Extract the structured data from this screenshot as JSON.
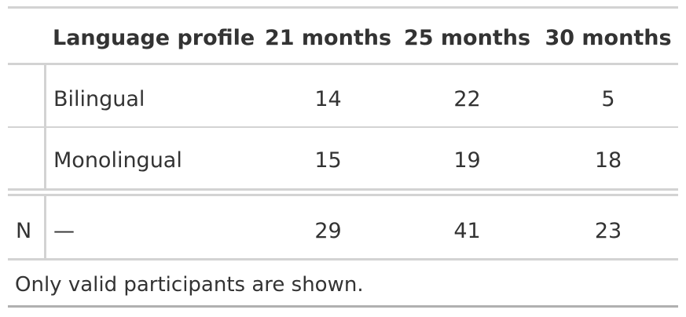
{
  "table": {
    "columns": [
      "Language profile",
      "21 months",
      "25 months",
      "30 months"
    ],
    "rows": [
      {
        "label": "Bilingual",
        "values": [
          "14",
          "22",
          "5"
        ]
      },
      {
        "label": "Monolingual",
        "values": [
          "15",
          "19",
          "18"
        ]
      }
    ],
    "summary": {
      "stub": "N",
      "label": "—",
      "values": [
        "29",
        "41",
        "23"
      ]
    },
    "footnote": "Only valid participants are shown."
  }
}
